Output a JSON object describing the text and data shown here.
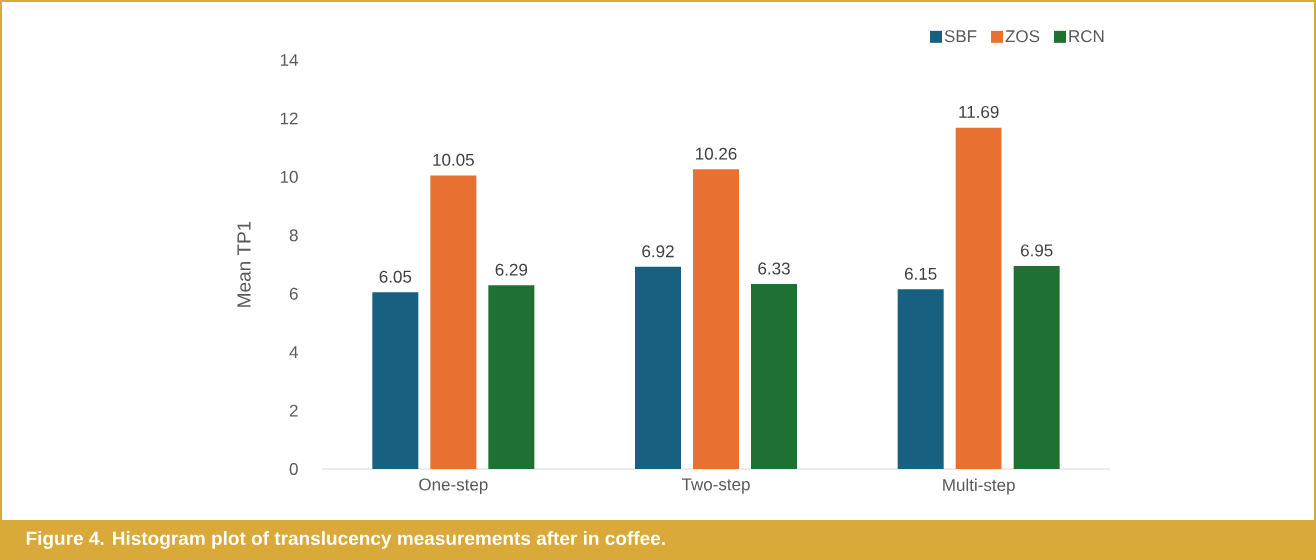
{
  "chart_data": {
    "type": "bar",
    "ylabel": "Mean TP1",
    "categories": [
      "One-step",
      "Two-step",
      "Multi-step"
    ],
    "series": [
      {
        "name": "SBF",
        "color": "#17607f",
        "values": [
          6.05,
          6.92,
          6.15
        ]
      },
      {
        "name": "ZOS",
        "color": "#e87132",
        "values": [
          10.05,
          10.26,
          11.69
        ]
      },
      {
        "name": "RCN",
        "color": "#1e7033",
        "values": [
          6.29,
          6.33,
          6.95
        ]
      }
    ],
    "ylim": [
      0,
      14
    ],
    "yticks": [
      0,
      2,
      4,
      6,
      8,
      10,
      12,
      14
    ],
    "data_labels": true,
    "legend": "top right",
    "grid": false,
    "annotations": [
      "Figure 4.  Histogram plot of translucency measurements after in coffee."
    ]
  }
}
